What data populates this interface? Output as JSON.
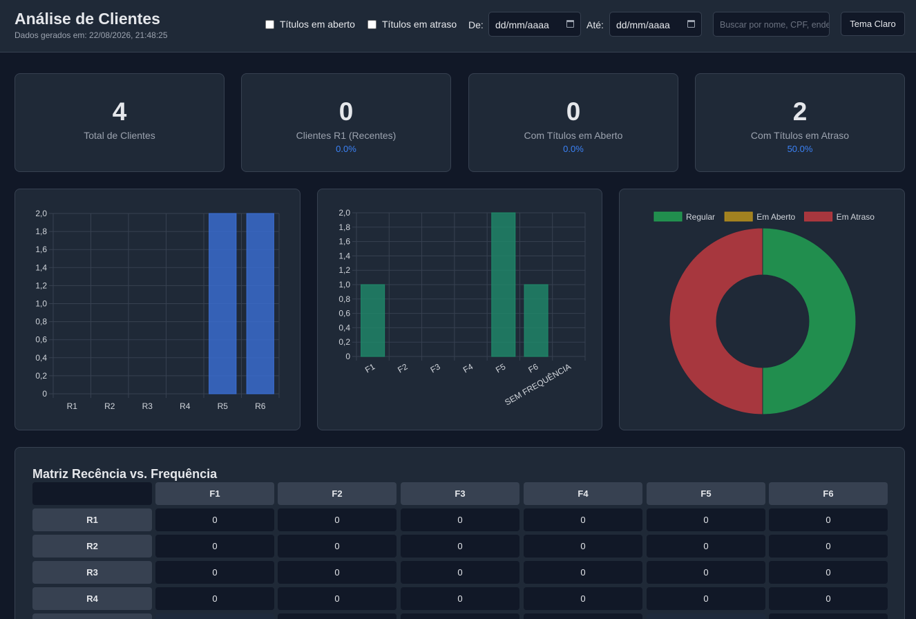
{
  "header": {
    "title": "Análise de Clientes",
    "generated": "Dados gerados em: 22/08/2026, 21:48:25",
    "filter_open_label": "Títulos em aberto",
    "filter_overdue_label": "Títulos em atraso",
    "from_label": "De:",
    "to_label": "Até:",
    "date_placeholder": "dd/mm/aaaa",
    "search_placeholder": "Buscar por nome, CPF, endereço...",
    "theme_button": "Tema Claro"
  },
  "kpis": [
    {
      "value": "4",
      "label": "Total de Clientes",
      "pct": ""
    },
    {
      "value": "0",
      "label": "Clientes R1 (Recentes)",
      "pct": "0.0%"
    },
    {
      "value": "0",
      "label": "Com Títulos em Aberto",
      "pct": "0.0%"
    },
    {
      "value": "2",
      "label": "Com Títulos em Atraso",
      "pct": "50.0%"
    }
  ],
  "chart_data": [
    {
      "type": "bar",
      "categories": [
        "R1",
        "R2",
        "R3",
        "R4",
        "R5",
        "R6"
      ],
      "values": [
        0,
        0,
        0,
        0,
        2,
        2
      ],
      "ylim": [
        0,
        2
      ],
      "yticks": [
        "0",
        "0,2",
        "0,4",
        "0,6",
        "0,8",
        "1,0",
        "1,2",
        "1,4",
        "1,6",
        "1,8",
        "2,0"
      ],
      "color": "#3b6fd6",
      "grid": true
    },
    {
      "type": "bar",
      "categories": [
        "F1",
        "F2",
        "F3",
        "F4",
        "F5",
        "F6",
        "SEM FREQUÊNCIA"
      ],
      "values": [
        1,
        0,
        0,
        0,
        2,
        1,
        0
      ],
      "ylim": [
        0,
        2
      ],
      "yticks": [
        "0",
        "0,2",
        "0,4",
        "0,6",
        "0,8",
        "1,0",
        "1,2",
        "1,4",
        "1,6",
        "1,8",
        "2,0"
      ],
      "color": "#1f8a6a",
      "grid": true
    },
    {
      "type": "pie",
      "labels": [
        "Regular",
        "Em Aberto",
        "Em Atraso"
      ],
      "values": [
        2,
        0,
        2
      ],
      "colors": [
        "#22a052",
        "#b8901c",
        "#c0393f"
      ],
      "legend": "top"
    }
  ],
  "matrix": {
    "title": "Matriz Recência vs. Frequência",
    "columns": [
      "F1",
      "F2",
      "F3",
      "F4",
      "F5",
      "F6"
    ],
    "rows": [
      {
        "label": "R1",
        "values": [
          "0",
          "0",
          "0",
          "0",
          "0",
          "0"
        ]
      },
      {
        "label": "R2",
        "values": [
          "0",
          "0",
          "0",
          "0",
          "0",
          "0"
        ]
      },
      {
        "label": "R3",
        "values": [
          "0",
          "0",
          "0",
          "0",
          "0",
          "0"
        ]
      },
      {
        "label": "R4",
        "values": [
          "0",
          "0",
          "0",
          "0",
          "0",
          "0"
        ]
      }
    ]
  }
}
